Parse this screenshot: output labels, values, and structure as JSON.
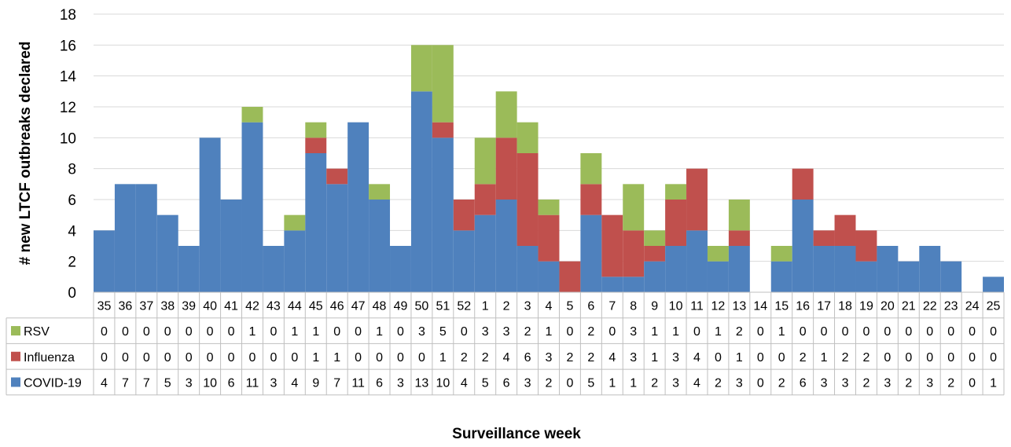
{
  "chart_data": {
    "type": "bar",
    "stacked": true,
    "title": "",
    "xlabel": "Surveillance week",
    "ylabel": "# new LTCF outbreaks declared",
    "ylim": [
      0,
      18
    ],
    "yticks": [
      0,
      2,
      4,
      6,
      8,
      10,
      12,
      14,
      16,
      18
    ],
    "grid": true,
    "legend": "data-table",
    "categories": [
      "35",
      "36",
      "37",
      "38",
      "39",
      "40",
      "41",
      "42",
      "43",
      "44",
      "45",
      "46",
      "47",
      "48",
      "49",
      "50",
      "51",
      "52",
      "1",
      "2",
      "3",
      "4",
      "5",
      "6",
      "7",
      "8",
      "9",
      "10",
      "11",
      "12",
      "13",
      "14",
      "15",
      "16",
      "17",
      "18",
      "19",
      "20",
      "21",
      "22",
      "23",
      "24",
      "25"
    ],
    "series": [
      {
        "name": "COVID-19",
        "color": "#4f81bd",
        "values": [
          4,
          7,
          7,
          5,
          3,
          10,
          6,
          11,
          3,
          4,
          9,
          7,
          11,
          6,
          3,
          13,
          10,
          4,
          5,
          6,
          3,
          2,
          0,
          5,
          1,
          1,
          2,
          3,
          4,
          2,
          3,
          0,
          2,
          6,
          3,
          3,
          2,
          3,
          2,
          3,
          2,
          0,
          1
        ]
      },
      {
        "name": "Influenza",
        "color": "#c0504d",
        "values": [
          0,
          0,
          0,
          0,
          0,
          0,
          0,
          0,
          0,
          0,
          1,
          1,
          0,
          0,
          0,
          0,
          1,
          2,
          2,
          4,
          6,
          3,
          2,
          2,
          4,
          3,
          1,
          3,
          4,
          0,
          1,
          0,
          0,
          2,
          1,
          2,
          2,
          0,
          0,
          0,
          0,
          0,
          0
        ]
      },
      {
        "name": "RSV",
        "color": "#9bbb59",
        "values": [
          0,
          0,
          0,
          0,
          0,
          0,
          0,
          1,
          0,
          1,
          1,
          0,
          0,
          1,
          0,
          3,
          5,
          0,
          3,
          3,
          2,
          1,
          0,
          2,
          0,
          3,
          1,
          1,
          0,
          1,
          2,
          0,
          1,
          0,
          0,
          0,
          0,
          0,
          0,
          0,
          0,
          0,
          0
        ]
      }
    ],
    "table_row_order": [
      "RSV",
      "Influenza",
      "COVID-19"
    ]
  }
}
